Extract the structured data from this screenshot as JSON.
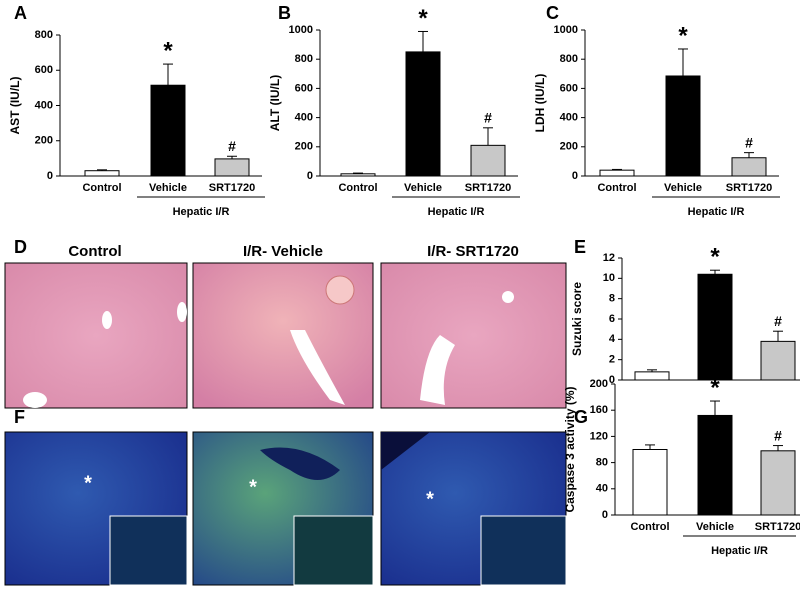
{
  "chart_data": [
    {
      "type": "bar",
      "panel": "A",
      "ylabel": "AST (IU/L)",
      "categories": [
        "Control",
        "Vehicle",
        "SRT1720"
      ],
      "values": [
        30,
        515,
        97
      ],
      "errors": [
        5,
        120,
        15
      ],
      "colors": [
        "#ffffff",
        "#000000",
        "#c8c8c8"
      ],
      "bar_labels": [
        null,
        "*",
        "#"
      ],
      "group_label": "Hepatic I/R",
      "ylim": [
        0,
        800
      ],
      "yticks": [
        0,
        200,
        400,
        600,
        800
      ]
    },
    {
      "type": "bar",
      "panel": "B",
      "ylabel": "ALT (IU/L)",
      "categories": [
        "Control",
        "Vehicle",
        "SRT1720"
      ],
      "values": [
        15,
        850,
        210
      ],
      "errors": [
        5,
        140,
        120
      ],
      "colors": [
        "#ffffff",
        "#000000",
        "#c8c8c8"
      ],
      "bar_labels": [
        null,
        "*",
        "#"
      ],
      "group_label": "Hepatic I/R",
      "ylim": [
        0,
        1000
      ],
      "yticks": [
        0,
        200,
        400,
        600,
        800,
        1000
      ]
    },
    {
      "type": "bar",
      "panel": "C",
      "ylabel": "LDH (IU/L)",
      "categories": [
        "Control",
        "Vehicle",
        "SRT1720"
      ],
      "values": [
        40,
        685,
        125
      ],
      "errors": [
        5,
        185,
        35
      ],
      "colors": [
        "#ffffff",
        "#000000",
        "#c8c8c8"
      ],
      "bar_labels": [
        null,
        "*",
        "#"
      ],
      "group_label": "Hepatic I/R",
      "ylim": [
        0,
        1000
      ],
      "yticks": [
        0,
        200,
        400,
        600,
        800,
        1000
      ]
    },
    {
      "type": "bar",
      "panel": "E",
      "ylabel": "Suzuki score",
      "categories": [
        null,
        null,
        null
      ],
      "values": [
        0.8,
        10.4,
        3.8
      ],
      "errors": [
        0.2,
        0.4,
        1.0
      ],
      "colors": [
        "#ffffff",
        "#000000",
        "#c8c8c8"
      ],
      "bar_labels": [
        null,
        "*",
        "#"
      ],
      "ylim": [
        0,
        12
      ],
      "yticks": [
        0,
        2,
        4,
        6,
        8,
        10,
        12
      ]
    },
    {
      "type": "bar",
      "panel": "G",
      "ylabel": "Caspase 3 activity (%)",
      "categories": [
        "Control",
        "Vehicle",
        "SRT1720"
      ],
      "values": [
        100,
        152,
        98
      ],
      "errors": [
        7,
        22,
        8
      ],
      "colors": [
        "#ffffff",
        "#000000",
        "#c8c8c8"
      ],
      "bar_labels": [
        null,
        "*",
        "#"
      ],
      "group_label": "Hepatic I/R",
      "ylim": [
        0,
        200
      ],
      "yticks": [
        0,
        40,
        80,
        120,
        160,
        200
      ]
    }
  ],
  "panels": {
    "D": {
      "letter": "D",
      "titles": [
        "Control",
        "I/R- Vehicle",
        "I/R- SRT1720"
      ]
    },
    "F": {
      "letter": "F",
      "markers": [
        "*",
        "*",
        "*"
      ]
    }
  }
}
